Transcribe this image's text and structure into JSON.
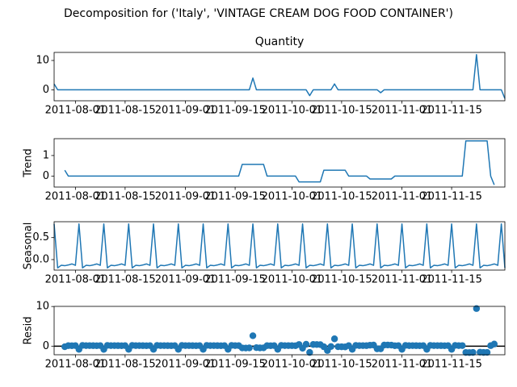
{
  "chart_data": {
    "type": "decomposition",
    "title": "Decomposition for ('Italy', 'VINTAGE CREAM DOG FOOD CONTAINER')",
    "x": [
      "2011-07-26",
      "2011-07-27",
      "2011-07-28",
      "2011-07-29",
      "2011-07-30",
      "2011-07-31",
      "2011-08-01",
      "2011-08-02",
      "2011-08-03",
      "2011-08-04",
      "2011-08-05",
      "2011-08-06",
      "2011-08-07",
      "2011-08-08",
      "2011-08-09",
      "2011-08-10",
      "2011-08-11",
      "2011-08-12",
      "2011-08-13",
      "2011-08-14",
      "2011-08-15",
      "2011-08-16",
      "2011-08-17",
      "2011-08-18",
      "2011-08-19",
      "2011-08-20",
      "2011-08-21",
      "2011-08-22",
      "2011-08-23",
      "2011-08-24",
      "2011-08-25",
      "2011-08-26",
      "2011-08-27",
      "2011-08-28",
      "2011-08-29",
      "2011-08-30",
      "2011-08-31",
      "2011-09-01",
      "2011-09-02",
      "2011-09-03",
      "2011-09-04",
      "2011-09-05",
      "2011-09-06",
      "2011-09-07",
      "2011-09-08",
      "2011-09-09",
      "2011-09-10",
      "2011-09-11",
      "2011-09-12",
      "2011-09-13",
      "2011-09-14",
      "2011-09-15",
      "2011-09-16",
      "2011-09-17",
      "2011-09-18",
      "2011-09-19",
      "2011-09-20",
      "2011-09-21",
      "2011-09-22",
      "2011-09-23",
      "2011-09-24",
      "2011-09-25",
      "2011-09-26",
      "2011-09-27",
      "2011-09-28",
      "2011-09-29",
      "2011-09-30",
      "2011-10-01",
      "2011-10-02",
      "2011-10-03",
      "2011-10-04",
      "2011-10-05",
      "2011-10-06",
      "2011-10-07",
      "2011-10-08",
      "2011-10-09",
      "2011-10-10",
      "2011-10-11",
      "2011-10-12",
      "2011-10-13",
      "2011-10-14",
      "2011-10-15",
      "2011-10-16",
      "2011-10-17",
      "2011-10-18",
      "2011-10-19",
      "2011-10-20",
      "2011-10-21",
      "2011-10-22",
      "2011-10-23",
      "2011-10-24",
      "2011-10-25",
      "2011-10-26",
      "2011-10-27",
      "2011-10-28",
      "2011-10-29",
      "2011-10-30",
      "2011-10-31",
      "2011-11-01",
      "2011-11-02",
      "2011-11-03",
      "2011-11-04",
      "2011-11-05",
      "2011-11-06",
      "2011-11-07",
      "2011-11-08",
      "2011-11-09",
      "2011-11-10",
      "2011-11-11",
      "2011-11-12",
      "2011-11-13",
      "2011-11-14",
      "2011-11-15",
      "2011-11-16",
      "2011-11-17",
      "2011-11-18",
      "2011-11-19",
      "2011-11-20",
      "2011-11-21",
      "2011-11-22",
      "2011-11-23",
      "2011-11-24",
      "2011-11-25",
      "2011-11-26",
      "2011-11-27",
      "2011-11-28",
      "2011-11-29",
      "2011-11-30"
    ],
    "xlim": [
      "2011-07-26",
      "2011-11-30"
    ],
    "xticks": [
      "2011-08-01",
      "2011-08-15",
      "2011-09-01",
      "2011-09-15",
      "2011-10-01",
      "2011-10-15",
      "2011-11-01",
      "2011-11-15"
    ],
    "panels": [
      {
        "type": "line",
        "title": "Quantity",
        "color": "#1f77b4",
        "ylim": [
          -3.75,
          12.75
        ],
        "yticks": [
          0,
          10
        ],
        "values": [
          2,
          0,
          0,
          0,
          0,
          0,
          0,
          0,
          0,
          0,
          0,
          0,
          0,
          0,
          0,
          0,
          0,
          0,
          0,
          0,
          0,
          0,
          0,
          0,
          0,
          0,
          0,
          0,
          0,
          0,
          0,
          0,
          0,
          0,
          0,
          0,
          0,
          0,
          0,
          0,
          0,
          0,
          0,
          0,
          0,
          0,
          0,
          0,
          0,
          0,
          0,
          0,
          0,
          0,
          0,
          0,
          4,
          0,
          0,
          0,
          0,
          0,
          0,
          0,
          0,
          0,
          0,
          0,
          0,
          0,
          0,
          0,
          -2,
          0,
          0,
          0,
          0,
          0,
          0,
          2,
          0,
          0,
          0,
          0,
          0,
          0,
          0,
          0,
          0,
          0,
          0,
          0,
          -1,
          0,
          0,
          0,
          0,
          0,
          0,
          0,
          0,
          0,
          0,
          0,
          0,
          0,
          0,
          0,
          0,
          0,
          0,
          0,
          0,
          0,
          0,
          0,
          0,
          0,
          0,
          12,
          0,
          0,
          0,
          0,
          0,
          0,
          0,
          -3
        ]
      },
      {
        "type": "line",
        "ylabel": "Trend",
        "color": "#1f77b4",
        "ylim": [
          -0.536,
          1.821
        ],
        "yticks": [
          0,
          1
        ],
        "values": [
          null,
          null,
          null,
          0.286,
          0,
          0,
          0,
          0,
          0,
          0,
          0,
          0,
          0,
          0,
          0,
          0,
          0,
          0,
          0,
          0,
          0,
          0,
          0,
          0,
          0,
          0,
          0,
          0,
          0,
          0,
          0,
          0,
          0,
          0,
          0,
          0,
          0,
          0,
          0,
          0,
          0,
          0,
          0,
          0,
          0,
          0,
          0,
          0,
          0,
          0,
          0,
          0,
          0,
          0.571,
          0.571,
          0.571,
          0.571,
          0.571,
          0.571,
          0.571,
          0,
          0,
          0,
          0,
          0,
          0,
          0,
          0,
          0,
          -0.286,
          -0.286,
          -0.286,
          -0.286,
          -0.286,
          -0.286,
          -0.286,
          0.286,
          0.286,
          0.286,
          0.286,
          0.286,
          0.286,
          0.286,
          0,
          0,
          0,
          0,
          0,
          0,
          -0.143,
          -0.143,
          -0.143,
          -0.143,
          -0.143,
          -0.143,
          -0.143,
          0,
          0,
          0,
          0,
          0,
          0,
          0,
          0,
          0,
          0,
          0,
          0,
          0,
          0,
          0,
          0,
          0,
          0,
          0,
          0,
          1.714,
          1.714,
          1.714,
          1.714,
          1.714,
          1.714,
          1.714,
          0,
          -0.429,
          null,
          null,
          null
        ]
      },
      {
        "type": "line",
        "ylabel": "Seasonal",
        "color": "#1f77b4",
        "ylim": [
          -0.239,
          0.861
        ],
        "yticks": [
          {
            "value": 0,
            "label": "0.0"
          },
          {
            "value": 0.5,
            "label": "0.5"
          }
        ],
        "values": [
          0.811,
          -0.189,
          -0.13,
          -0.139,
          -0.123,
          -0.099,
          -0.13,
          0.811,
          -0.189,
          -0.13,
          -0.139,
          -0.123,
          -0.099,
          -0.13,
          0.811,
          -0.189,
          -0.13,
          -0.139,
          -0.123,
          -0.099,
          -0.13,
          0.811,
          -0.189,
          -0.13,
          -0.139,
          -0.123,
          -0.099,
          -0.13,
          0.811,
          -0.189,
          -0.13,
          -0.139,
          -0.123,
          -0.099,
          -0.13,
          0.811,
          -0.189,
          -0.13,
          -0.139,
          -0.123,
          -0.099,
          -0.13,
          0.811,
          -0.189,
          -0.13,
          -0.139,
          -0.123,
          -0.099,
          -0.13,
          0.811,
          -0.189,
          -0.13,
          -0.139,
          -0.123,
          -0.099,
          -0.13,
          0.811,
          -0.189,
          -0.13,
          -0.139,
          -0.123,
          -0.099,
          -0.13,
          0.811,
          -0.189,
          -0.13,
          -0.139,
          -0.123,
          -0.099,
          -0.13,
          0.811,
          -0.189,
          -0.13,
          -0.139,
          -0.123,
          -0.099,
          -0.13,
          0.811,
          -0.189,
          -0.13,
          -0.139,
          -0.123,
          -0.099,
          -0.13,
          0.811,
          -0.189,
          -0.13,
          -0.139,
          -0.123,
          -0.099,
          -0.13,
          0.811,
          -0.189,
          -0.13,
          -0.139,
          -0.123,
          -0.099,
          -0.13,
          0.811,
          -0.189,
          -0.13,
          -0.139,
          -0.123,
          -0.099,
          -0.13,
          0.811,
          -0.189,
          -0.13,
          -0.139,
          -0.123,
          -0.099,
          -0.13,
          0.811,
          -0.189,
          -0.13,
          -0.139,
          -0.123,
          -0.099,
          -0.13,
          0.811,
          -0.189,
          -0.13,
          -0.139,
          -0.123,
          -0.099,
          -0.13,
          0.811,
          -0.189
        ]
      },
      {
        "type": "scatter",
        "ylabel": "Resid",
        "color": "#1f77b4",
        "ylim": [
          -2.17,
          10.03
        ],
        "yticks": [
          0,
          10
        ],
        "axhline": 0,
        "values": [
          null,
          null,
          null,
          -0.147,
          0.123,
          0.099,
          0.13,
          -0.811,
          0.189,
          0.13,
          0.139,
          0.123,
          0.099,
          0.13,
          -0.811,
          0.189,
          0.13,
          0.139,
          0.123,
          0.099,
          0.13,
          -0.811,
          0.189,
          0.13,
          0.139,
          0.123,
          0.099,
          0.13,
          -0.811,
          0.189,
          0.13,
          0.139,
          0.123,
          0.099,
          0.13,
          -0.811,
          0.189,
          0.13,
          0.139,
          0.123,
          0.099,
          0.13,
          -0.811,
          0.189,
          0.13,
          0.139,
          0.123,
          0.099,
          0.13,
          -0.811,
          0.189,
          0.13,
          0.139,
          -0.448,
          -0.472,
          -0.441,
          2.618,
          -0.382,
          -0.441,
          -0.432,
          0.123,
          0.099,
          0.13,
          -0.811,
          0.189,
          0.13,
          0.139,
          0.123,
          0.099,
          0.416,
          -0.525,
          0.475,
          -1.584,
          0.425,
          0.409,
          0.385,
          -0.156,
          -1.097,
          -0.097,
          1.844,
          -0.147,
          -0.163,
          -0.187,
          0.13,
          -0.811,
          0.189,
          0.13,
          0.139,
          0.123,
          0.242,
          0.273,
          -0.668,
          -0.668,
          0.273,
          0.282,
          0.266,
          0.099,
          0.13,
          -0.811,
          0.189,
          0.13,
          0.139,
          0.123,
          0.099,
          0.13,
          -0.811,
          0.189,
          0.13,
          0.139,
          0.123,
          0.099,
          0.13,
          -0.811,
          0.189,
          0.13,
          0.139,
          -1.591,
          -1.615,
          -1.584,
          9.475,
          -1.525,
          -1.584,
          -1.575,
          0.123,
          0.528,
          null,
          null,
          null
        ]
      }
    ]
  }
}
